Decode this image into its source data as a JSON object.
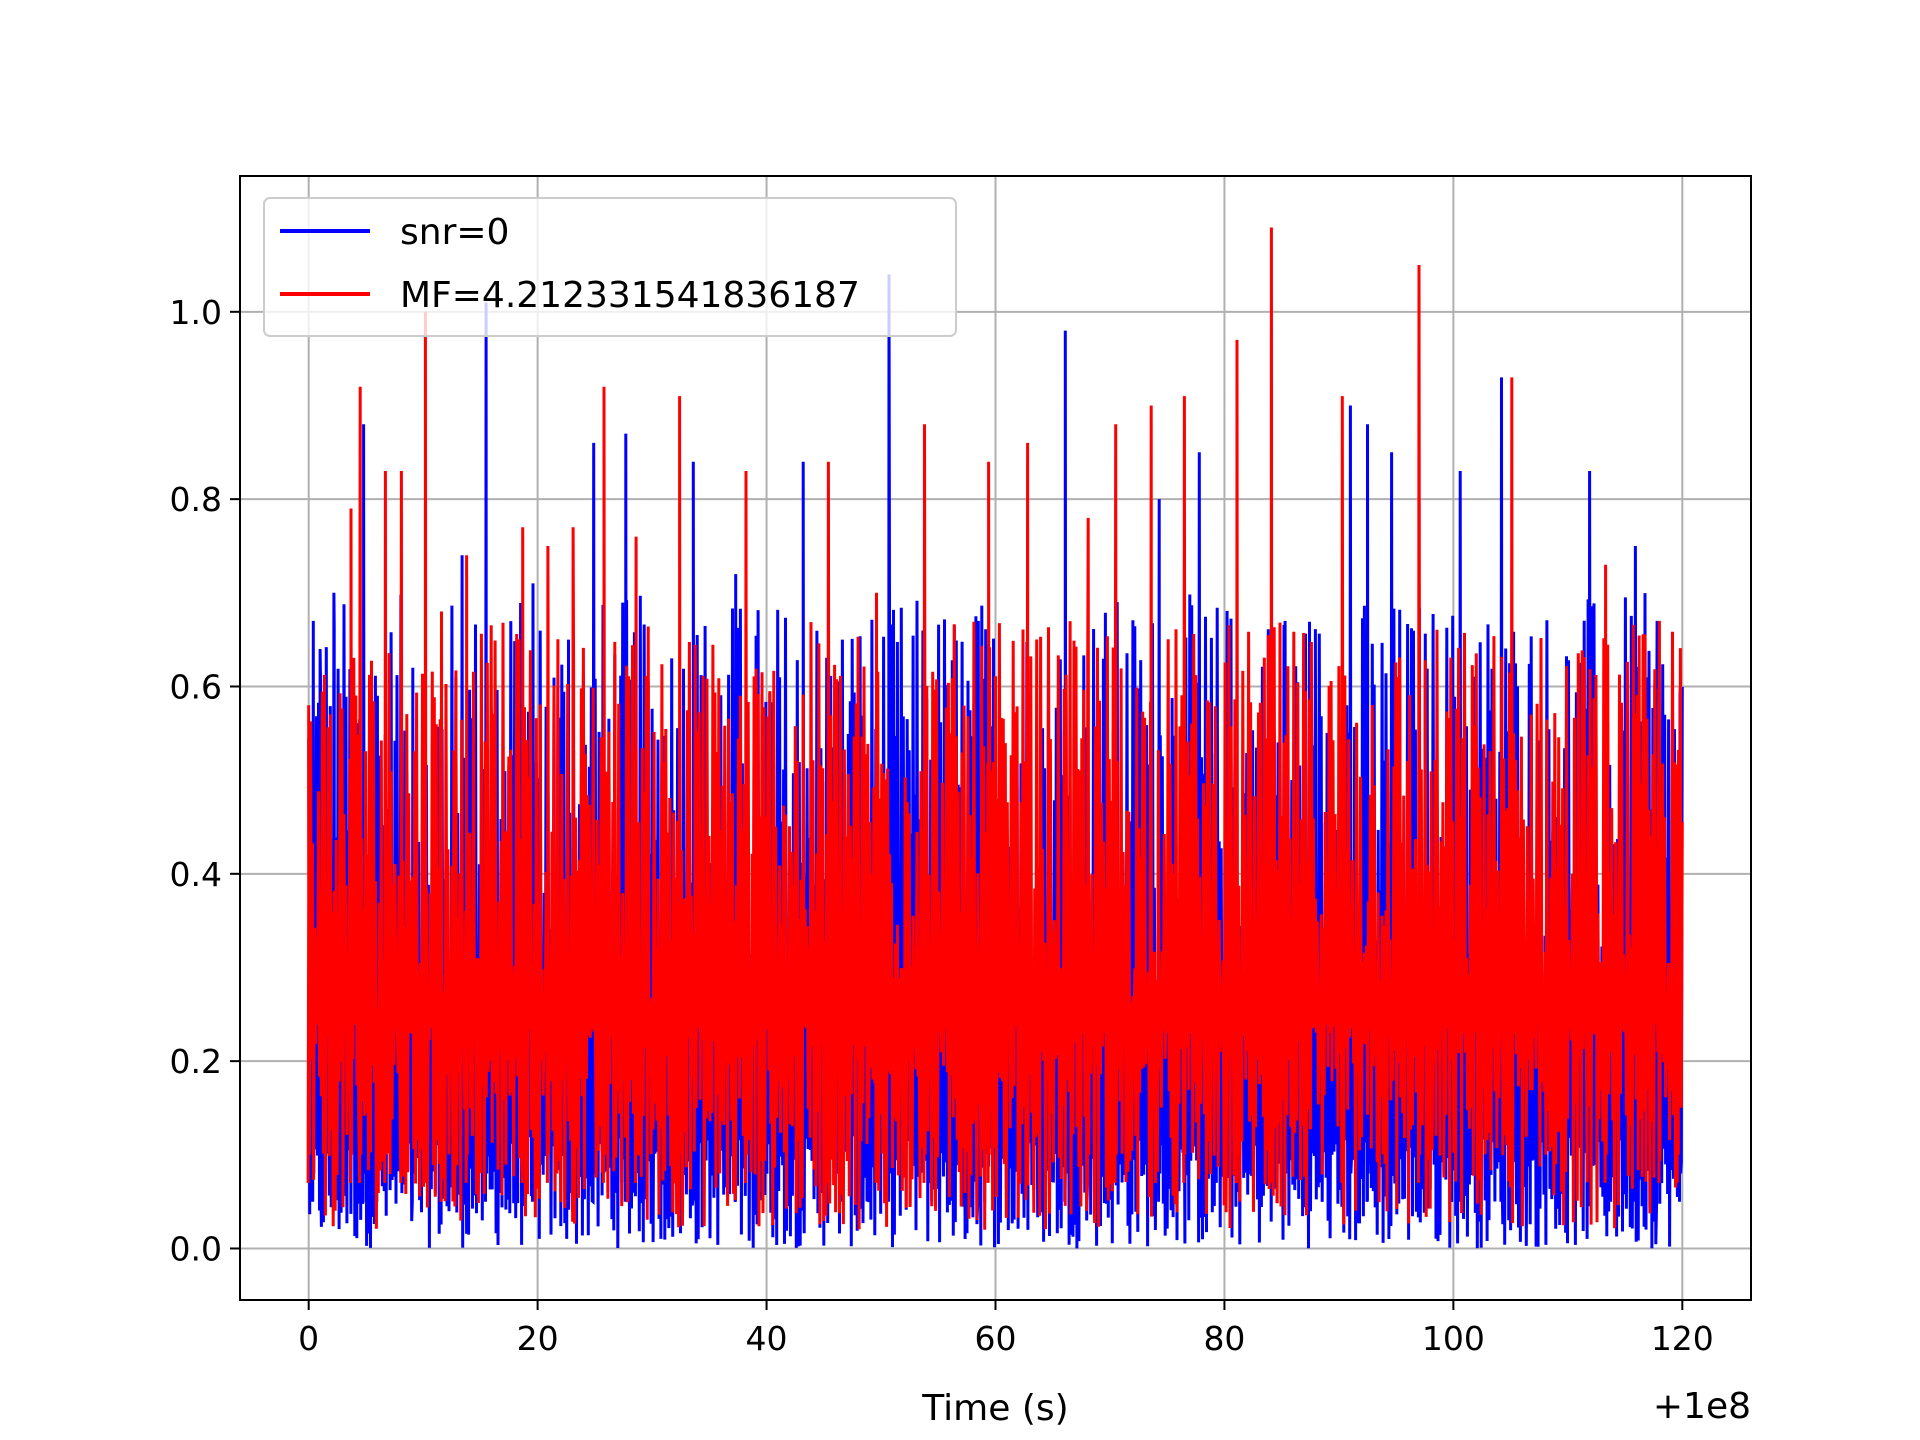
{
  "chart_data": {
    "type": "line",
    "title": "",
    "xlabel": "Time (s)",
    "ylabel": "",
    "x_offset_text": "+1e8",
    "xlim": [
      -6,
      126
    ],
    "ylim": [
      -0.055,
      1.145
    ],
    "xticks": [
      0,
      20,
      40,
      60,
      80,
      100,
      120
    ],
    "xtick_labels": [
      "0",
      "20",
      "40",
      "60",
      "80",
      "100",
      "120"
    ],
    "yticks": [
      0.0,
      0.2,
      0.4,
      0.6,
      0.8,
      1.0
    ],
    "ytick_labels": [
      "0.0",
      "0.2",
      "0.4",
      "0.6",
      "0.8",
      "1.0"
    ],
    "grid": true,
    "legend_position": "top-left",
    "series": [
      {
        "name": "snr=0",
        "color": "#0000ff",
        "x_range": [
          0,
          120
        ],
        "baseline_low": 0.0,
        "peaks": [
          {
            "x": 0.4,
            "y": 0.67
          },
          {
            "x": 1.0,
            "y": 0.64
          },
          {
            "x": 2.2,
            "y": 0.7
          },
          {
            "x": 4.8,
            "y": 0.88
          },
          {
            "x": 6.0,
            "y": 0.59
          },
          {
            "x": 9.1,
            "y": 0.62
          },
          {
            "x": 13.4,
            "y": 0.74
          },
          {
            "x": 15.5,
            "y": 1.01
          },
          {
            "x": 19.6,
            "y": 0.71
          },
          {
            "x": 22.7,
            "y": 0.65
          },
          {
            "x": 24.9,
            "y": 0.86
          },
          {
            "x": 27.7,
            "y": 0.87
          },
          {
            "x": 33.6,
            "y": 0.84
          },
          {
            "x": 37.3,
            "y": 0.72
          },
          {
            "x": 43.2,
            "y": 0.84
          },
          {
            "x": 50.7,
            "y": 1.04
          },
          {
            "x": 58.5,
            "y": 0.67
          },
          {
            "x": 66.1,
            "y": 0.98
          },
          {
            "x": 74.3,
            "y": 0.8
          },
          {
            "x": 77.8,
            "y": 0.85
          },
          {
            "x": 85.3,
            "y": 0.67
          },
          {
            "x": 91.0,
            "y": 0.9
          },
          {
            "x": 92.5,
            "y": 0.88
          },
          {
            "x": 94.6,
            "y": 0.85
          },
          {
            "x": 100.6,
            "y": 0.83
          },
          {
            "x": 104.2,
            "y": 0.93
          },
          {
            "x": 111.9,
            "y": 0.83
          },
          {
            "x": 115.9,
            "y": 0.75
          },
          {
            "x": 117.8,
            "y": 0.67
          },
          {
            "x": 119.8,
            "y": 0.59
          }
        ]
      },
      {
        "name": "MF=4.212331541836187",
        "color": "#ff0000",
        "x_range": [
          0,
          120
        ],
        "baseline_low": 0.02,
        "peaks": [
          {
            "x": 0.0,
            "y": 0.58
          },
          {
            "x": 3.7,
            "y": 0.79
          },
          {
            "x": 4.5,
            "y": 0.92
          },
          {
            "x": 6.7,
            "y": 0.83
          },
          {
            "x": 8.1,
            "y": 0.83
          },
          {
            "x": 10.2,
            "y": 1.0
          },
          {
            "x": 11.6,
            "y": 0.68
          },
          {
            "x": 13.8,
            "y": 0.74
          },
          {
            "x": 18.7,
            "y": 0.77
          },
          {
            "x": 20.9,
            "y": 0.75
          },
          {
            "x": 23.1,
            "y": 0.77
          },
          {
            "x": 25.8,
            "y": 0.92
          },
          {
            "x": 28.6,
            "y": 0.76
          },
          {
            "x": 32.4,
            "y": 0.91
          },
          {
            "x": 38.2,
            "y": 0.83
          },
          {
            "x": 45.4,
            "y": 0.84
          },
          {
            "x": 49.6,
            "y": 0.7
          },
          {
            "x": 53.8,
            "y": 0.88
          },
          {
            "x": 59.4,
            "y": 0.84
          },
          {
            "x": 62.8,
            "y": 0.86
          },
          {
            "x": 68.1,
            "y": 0.78
          },
          {
            "x": 70.5,
            "y": 0.88
          },
          {
            "x": 73.6,
            "y": 0.9
          },
          {
            "x": 76.5,
            "y": 0.91
          },
          {
            "x": 81.1,
            "y": 0.97
          },
          {
            "x": 84.1,
            "y": 1.09
          },
          {
            "x": 90.3,
            "y": 0.91
          },
          {
            "x": 97.0,
            "y": 1.05
          },
          {
            "x": 105.1,
            "y": 0.93
          },
          {
            "x": 113.3,
            "y": 0.73
          },
          {
            "x": 118.0,
            "y": 0.67
          },
          {
            "x": 119.6,
            "y": 0.51
          }
        ]
      }
    ]
  }
}
